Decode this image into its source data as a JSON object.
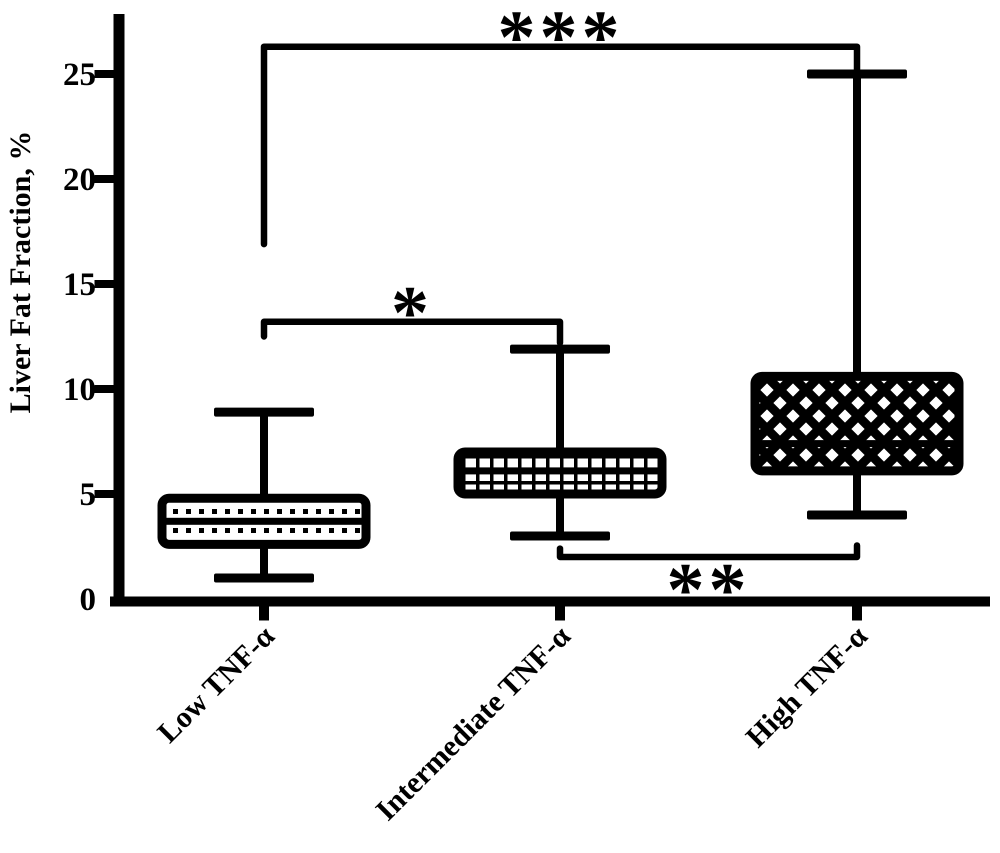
{
  "figure": {
    "background_color": "#ffffff",
    "ink_color": "#000000"
  },
  "chart_data": {
    "type": "boxplot",
    "title": "",
    "xlabel": "",
    "ylabel": "Liver Fat Fraction, %",
    "ylim": [
      0,
      27.5
    ],
    "yticks": [
      0,
      5,
      10,
      15,
      20,
      25
    ],
    "grid": false,
    "legend": null,
    "categories": [
      "Low TNF-α",
      "Intermediate TNF-α",
      "High TNF-α"
    ],
    "series": [
      {
        "name": "Low TNF-α",
        "min": 1.0,
        "q1": 2.6,
        "median": 3.7,
        "q3": 4.8,
        "max": 8.9,
        "fill_pattern": "dotted-rows"
      },
      {
        "name": "Intermediate TNF-α",
        "min": 3.0,
        "q1": 5.0,
        "median": 6.1,
        "q3": 7.0,
        "max": 11.9,
        "fill_pattern": "grid"
      },
      {
        "name": "High TNF-α",
        "min": 4.0,
        "q1": 6.1,
        "median": 7.4,
        "q3": 10.6,
        "max": 25.0,
        "fill_pattern": "diagonal-crosshatch"
      }
    ],
    "significance": [
      {
        "label": "***",
        "from": 0,
        "to": 2,
        "level_value": 26.3,
        "left_arm_to": 16.9,
        "right_arm_to": 25.2,
        "label_side": "above"
      },
      {
        "label": "*",
        "from": 0,
        "to": 1,
        "level_value": 13.2,
        "left_arm_to": 12.5,
        "right_arm_to": 12.2,
        "label_side": "above"
      },
      {
        "label": "**",
        "from": 1,
        "to": 2,
        "level_value": 2.0,
        "left_arm_to": 2.4,
        "right_arm_to": 2.55,
        "label_side": "below"
      }
    ]
  }
}
